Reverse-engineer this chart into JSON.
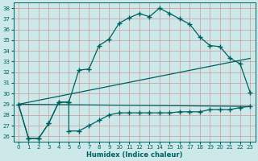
{
  "xlabel": "Humidex (Indice chaleur)",
  "bg_color": "#cce8e8",
  "line_color": "#006060",
  "grid_color": "#cc9999",
  "ylim": [
    25.5,
    38.5
  ],
  "xlim": [
    -0.5,
    23.5
  ],
  "yticks": [
    26,
    27,
    28,
    29,
    30,
    31,
    32,
    33,
    34,
    35,
    36,
    37,
    38
  ],
  "xticks": [
    0,
    1,
    2,
    3,
    4,
    5,
    6,
    7,
    8,
    9,
    10,
    11,
    12,
    13,
    14,
    15,
    16,
    17,
    18,
    19,
    20,
    21,
    22,
    23
  ],
  "curve_main_x": [
    0,
    1,
    2,
    3,
    4,
    5,
    6,
    7,
    8,
    9,
    10,
    11,
    12,
    13,
    14,
    15,
    16,
    17,
    18,
    19,
    20,
    21,
    22,
    23
  ],
  "curve_main_y": [
    29.0,
    25.8,
    25.8,
    27.2,
    29.2,
    29.2,
    32.2,
    32.3,
    34.5,
    35.1,
    36.6,
    37.1,
    37.5,
    37.2,
    38.0,
    37.5,
    37.0,
    36.5,
    35.3,
    34.5,
    34.4,
    33.3,
    32.8,
    30.1
  ],
  "curve_step_x": [
    0,
    1,
    2,
    3,
    4,
    5,
    5,
    6,
    7,
    8,
    9,
    10,
    11,
    12,
    13,
    14,
    15,
    16,
    17,
    18,
    19,
    20,
    21,
    22,
    23
  ],
  "curve_step_y": [
    29.0,
    25.8,
    25.8,
    27.2,
    29.2,
    29.2,
    26.5,
    26.5,
    27.0,
    27.5,
    28.0,
    28.2,
    28.2,
    28.2,
    28.2,
    28.2,
    28.2,
    28.3,
    28.3,
    28.3,
    28.5,
    28.5,
    28.5,
    28.7,
    28.8
  ],
  "curve_line1_x": [
    0,
    23
  ],
  "curve_line1_y": [
    29.0,
    33.3
  ],
  "curve_line2_x": [
    0,
    23
  ],
  "curve_line2_y": [
    29.0,
    28.8
  ],
  "marker": "+",
  "markersize": 4.0,
  "linewidth": 0.9
}
